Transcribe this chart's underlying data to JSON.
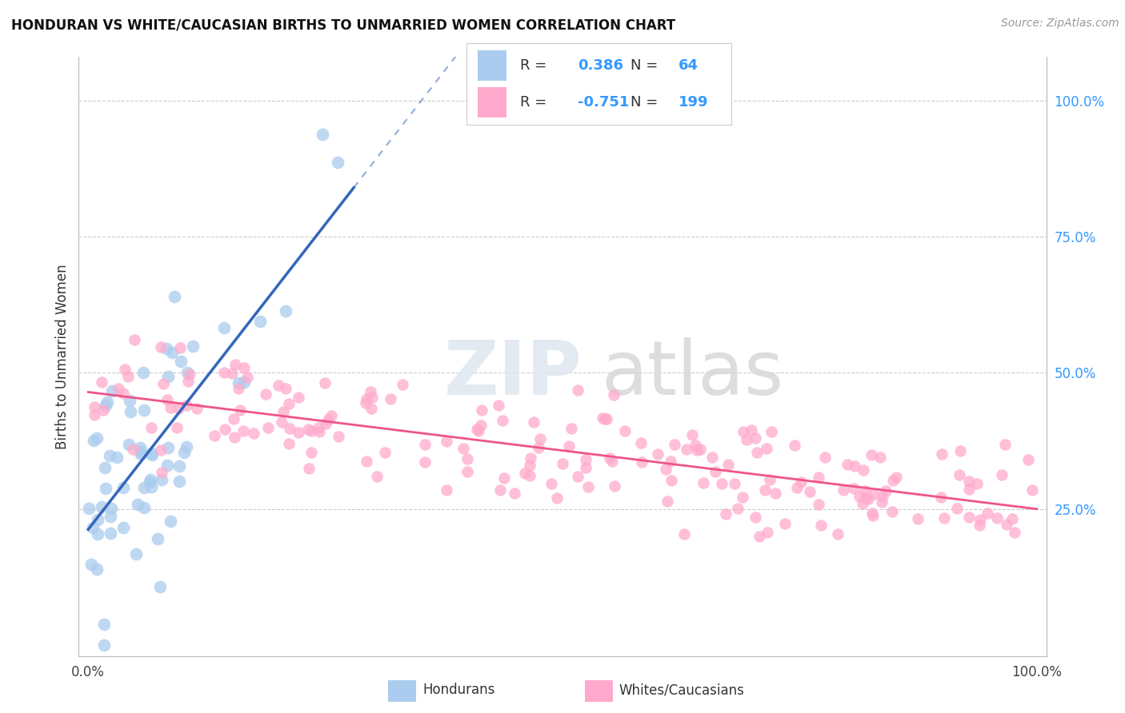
{
  "title": "HONDURAN VS WHITE/CAUCASIAN BIRTHS TO UNMARRIED WOMEN CORRELATION CHART",
  "source": "Source: ZipAtlas.com",
  "ylabel": "Births to Unmarried Women",
  "right_yticks": [
    "100.0%",
    "75.0%",
    "50.0%",
    "25.0%"
  ],
  "right_ytick_vals": [
    1.0,
    0.75,
    0.5,
    0.25
  ],
  "background_color": "#ffffff",
  "grid_color": "#cccccc",
  "blue_color": "#aaccee",
  "blue_line_color": "#3366bb",
  "pink_color": "#ffaacc",
  "pink_line_color": "#ee5588",
  "R_blue": 0.386,
  "N_blue": 64,
  "R_pink": -0.751,
  "N_pink": 199,
  "legend_text_color": "#3399ff",
  "watermark_zip": "ZIP",
  "watermark_atlas": "atlas"
}
